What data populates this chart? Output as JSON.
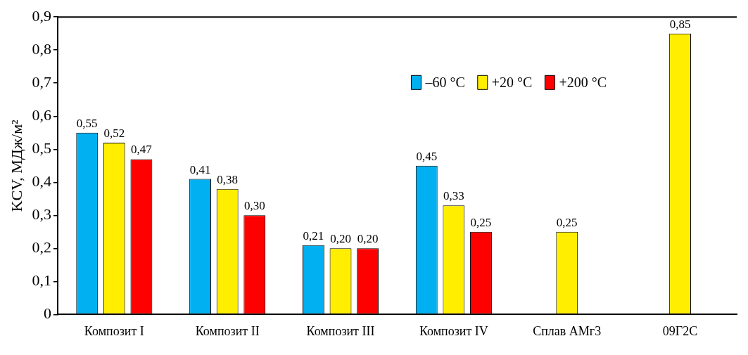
{
  "chart_data": {
    "type": "bar",
    "ylabel": "KCV, МДж/м²",
    "categories": [
      "Композит I",
      "Композит II",
      "Композит III",
      "Композит IV",
      "Сплав АМг3",
      "09Г2С"
    ],
    "series": [
      {
        "name": "–60 °C",
        "color": "#00b0f0",
        "values": [
          0.55,
          0.41,
          0.21,
          0.45,
          null,
          null
        ],
        "value_labels": [
          "0,55",
          "0,41",
          "0,21",
          "0,45",
          null,
          null
        ]
      },
      {
        "name": "+20 °C",
        "color": "#ffee00",
        "values": [
          0.52,
          0.38,
          0.2,
          0.33,
          0.25,
          0.85
        ],
        "value_labels": [
          "0,52",
          "0,38",
          "0,20",
          "0,33",
          "0,25",
          "0,85"
        ]
      },
      {
        "name": "+200 °C",
        "color": "#ff0000",
        "values": [
          0.47,
          0.3,
          0.2,
          0.25,
          null,
          null
        ],
        "value_labels": [
          "0,47",
          "0,30",
          "0,20",
          "0,25",
          null,
          null
        ]
      }
    ],
    "ylim": [
      0,
      0.9
    ],
    "yticks": [
      0,
      {
        "value": 0.1,
        "label": "0,1"
      },
      {
        "value": 0.2,
        "label": "0,2"
      },
      {
        "value": 0.3,
        "label": "0,3"
      },
      {
        "value": 0.4,
        "label": "0,4"
      },
      {
        "value": 0.5,
        "label": "0,5"
      },
      {
        "value": 0.6,
        "label": "0,6"
      },
      {
        "value": 0.7,
        "label": "0,7"
      },
      {
        "value": 0.8,
        "label": "0,8"
      },
      {
        "value": 0.9,
        "label": "0,9"
      }
    ],
    "grid": false,
    "legend": "top right"
  }
}
